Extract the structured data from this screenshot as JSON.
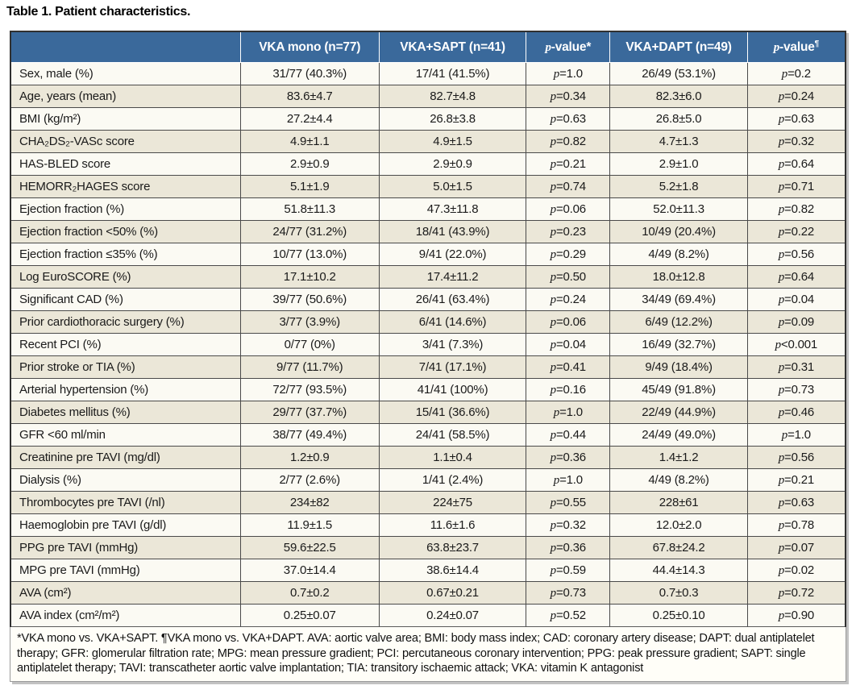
{
  "title": "Table 1. Patient characteristics.",
  "colors": {
    "header_bg": "#3a699b",
    "header_text": "#ffffff",
    "row_light": "#fbfaf3",
    "row_stripe": "#ebe7d8",
    "grid_line": "#4a4a4a",
    "outer_border": "#303030"
  },
  "table": {
    "columns": [
      "",
      "VKA mono (n=77)",
      "VKA+SAPT (n=41)",
      "p-value*",
      "VKA+DAPT (n=49)",
      "p-value¶"
    ],
    "rows": [
      {
        "label": "Sex, male (%)",
        "values": [
          "31/77 (40.3%)",
          "17/41 (41.5%)",
          "p=1.0",
          "26/49 (53.1%)",
          "p=0.2"
        ]
      },
      {
        "label": "Age, years (mean)",
        "values": [
          "83.6±4.7",
          "82.7±4.8",
          "p=0.34",
          "82.3±6.0",
          "p=0.24"
        ]
      },
      {
        "label": "BMI (kg/m²)",
        "values": [
          "27.2±4.4",
          "26.8±3.8",
          "p=0.63",
          "26.8±5.0",
          "p=0.63"
        ]
      },
      {
        "label": "CHA₂DS₂-VASc score",
        "values": [
          "4.9±1.1",
          "4.9±1.5",
          "p=0.82",
          "4.7±1.3",
          "p=0.32"
        ]
      },
      {
        "label": "HAS-BLED score",
        "values": [
          "2.9±0.9",
          "2.9±0.9",
          "p=0.21",
          "2.9±1.0",
          "p=0.64"
        ]
      },
      {
        "label": "HEMORR₂HAGES score",
        "values": [
          "5.1±1.9",
          "5.0±1.5",
          "p=0.74",
          "5.2±1.8",
          "p=0.71"
        ]
      },
      {
        "label": "Ejection fraction (%)",
        "values": [
          "51.8±11.3",
          "47.3±11.8",
          "p=0.06",
          "52.0±11.3",
          "p=0.82"
        ]
      },
      {
        "label": "Ejection fraction <50% (%)",
        "values": [
          "24/77 (31.2%)",
          "18/41 (43.9%)",
          "p=0.23",
          "10/49 (20.4%)",
          "p=0.22"
        ]
      },
      {
        "label": "Ejection fraction ≤35% (%)",
        "values": [
          "10/77 (13.0%)",
          "9/41 (22.0%)",
          "p=0.29",
          "4/49 (8.2%)",
          "p=0.56"
        ]
      },
      {
        "label": "Log EuroSCORE (%)",
        "values": [
          "17.1±10.2",
          "17.4±11.2",
          "p=0.50",
          "18.0±12.8",
          "p=0.64"
        ]
      },
      {
        "label": "Significant CAD (%)",
        "values": [
          "39/77 (50.6%)",
          "26/41 (63.4%)",
          "p=0.24",
          "34/49 (69.4%)",
          "p=0.04"
        ]
      },
      {
        "label": "Prior cardiothoracic surgery (%)",
        "values": [
          "3/77 (3.9%)",
          "6/41 (14.6%)",
          "p=0.06",
          "6/49 (12.2%)",
          "p=0.09"
        ]
      },
      {
        "label": "Recent PCI (%)",
        "values": [
          "0/77 (0%)",
          "3/41 (7.3%)",
          "p=0.04",
          "16/49 (32.7%)",
          "p<0.001"
        ]
      },
      {
        "label": "Prior stroke or TIA (%)",
        "values": [
          "9/77 (11.7%)",
          "7/41 (17.1%)",
          "p=0.41",
          "9/49 (18.4%)",
          "p=0.31"
        ]
      },
      {
        "label": "Arterial hypertension (%)",
        "values": [
          "72/77 (93.5%)",
          "41/41 (100%)",
          "p=0.16",
          "45/49 (91.8%)",
          "p=0.73"
        ]
      },
      {
        "label": "Diabetes mellitus (%)",
        "values": [
          "29/77 (37.7%)",
          "15/41 (36.6%)",
          "p=1.0",
          "22/49 (44.9%)",
          "p=0.46"
        ]
      },
      {
        "label": "GFR <60 ml/min",
        "values": [
          "38/77 (49.4%)",
          "24/41 (58.5%)",
          "p=0.44",
          "24/49 (49.0%)",
          "p=1.0"
        ]
      },
      {
        "label": "Creatinine pre TAVI (mg/dl)",
        "values": [
          "1.2±0.9",
          "1.1±0.4",
          "p=0.36",
          "1.4±1.2",
          "p=0.56"
        ]
      },
      {
        "label": "Dialysis (%)",
        "values": [
          "2/77 (2.6%)",
          "1/41 (2.4%)",
          "p=1.0",
          "4/49 (8.2%)",
          "p=0.21"
        ]
      },
      {
        "label": "Thrombocytes pre TAVI (/nl)",
        "values": [
          "234±82",
          "224±75",
          "p=0.55",
          "228±61",
          "p=0.63"
        ]
      },
      {
        "label": "Haemoglobin pre TAVI (g/dl)",
        "values": [
          "11.9±1.5",
          "11.6±1.6",
          "p=0.32",
          "12.0±2.0",
          "p=0.78"
        ]
      },
      {
        "label": "PPG pre TAVI (mmHg)",
        "values": [
          "59.6±22.5",
          "63.8±23.7",
          "p=0.36",
          "67.8±24.2",
          "p=0.07"
        ]
      },
      {
        "label": "MPG pre TAVI (mmHg)",
        "values": [
          "37.0±14.4",
          "38.6±14.4",
          "p=0.59",
          "44.4±14.3",
          "p=0.02"
        ]
      },
      {
        "label": "AVA (cm²)",
        "values": [
          "0.7±0.2",
          "0.67±0.21",
          "p=0.73",
          "0.7±0.3",
          "p=0.72"
        ]
      },
      {
        "label": "AVA index (cm²/m²)",
        "values": [
          "0.25±0.07",
          "0.24±0.07",
          "p=0.52",
          "0.25±0.10",
          "p=0.90"
        ]
      }
    ]
  },
  "footnote": "*VKA mono vs. VKA+SAPT. ¶VKA mono vs. VKA+DAPT. AVA: aortic valve area; BMI: body mass index; CAD: coronary artery disease; DAPT: dual antiplatelet therapy; GFR: glomerular filtration rate; MPG: mean pressure gradient; PCI: percutaneous coronary intervention; PPG: peak pressure gradient; SAPT: single antiplatelet therapy; TAVI: transcatheter aortic valve implantation; TIA: transitory ischaemic attack; VKA: vitamin K antagonist"
}
